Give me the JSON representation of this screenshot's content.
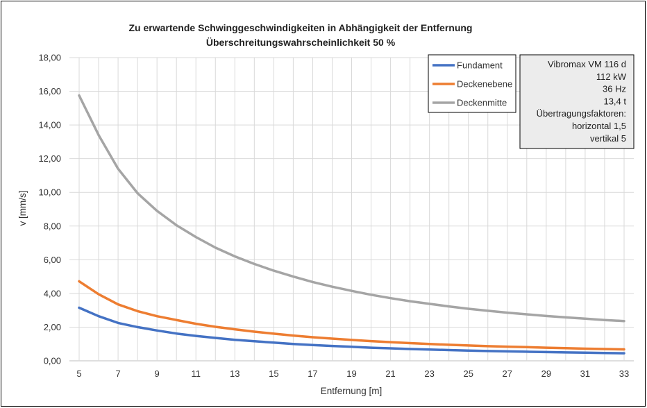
{
  "chart_data": {
    "type": "line",
    "title": "Zu erwartende Schwinggeschwindigkeiten in Abhängigkeit der Entfernung",
    "subtitle": "Überschreitungswahrscheinlichkeit 50 %",
    "xlabel": "Entfernung [m]",
    "ylabel": "v [mm/s]",
    "xlim": [
      5,
      33
    ],
    "ylim": [
      0,
      18
    ],
    "x_ticks": [
      "5",
      "7",
      "9",
      "11",
      "13",
      "15",
      "17",
      "19",
      "21",
      "23",
      "25",
      "27",
      "29",
      "31",
      "33"
    ],
    "y_ticks": [
      "0,00",
      "2,00",
      "4,00",
      "6,00",
      "8,00",
      "10,00",
      "12,00",
      "14,00",
      "16,00",
      "18,00"
    ],
    "grid": true,
    "legend_position": "top-right",
    "x": [
      5,
      6,
      7,
      8,
      9,
      10,
      11,
      12,
      13,
      14,
      15,
      16,
      17,
      18,
      19,
      20,
      21,
      22,
      23,
      24,
      25,
      26,
      27,
      28,
      29,
      30,
      31,
      32,
      33
    ],
    "series": [
      {
        "name": "Fundament",
        "color": "#4472C4",
        "values": [
          3.15,
          2.65,
          2.25,
          2.0,
          1.8,
          1.62,
          1.48,
          1.36,
          1.25,
          1.16,
          1.08,
          1.0,
          0.94,
          0.88,
          0.83,
          0.78,
          0.74,
          0.7,
          0.67,
          0.64,
          0.61,
          0.58,
          0.56,
          0.54,
          0.52,
          0.5,
          0.48,
          0.46,
          0.45
        ]
      },
      {
        "name": "Deckenebene",
        "color": "#ED7D31",
        "values": [
          4.72,
          3.95,
          3.35,
          2.95,
          2.65,
          2.42,
          2.2,
          2.02,
          1.87,
          1.73,
          1.61,
          1.5,
          1.4,
          1.32,
          1.24,
          1.17,
          1.11,
          1.05,
          1.0,
          0.95,
          0.91,
          0.87,
          0.84,
          0.81,
          0.78,
          0.75,
          0.72,
          0.7,
          0.68
        ]
      },
      {
        "name": "Deckenmitte",
        "color": "#A5A5A5",
        "values": [
          15.75,
          13.4,
          11.4,
          9.95,
          8.9,
          8.05,
          7.35,
          6.72,
          6.2,
          5.75,
          5.35,
          5.0,
          4.68,
          4.4,
          4.15,
          3.92,
          3.72,
          3.54,
          3.38,
          3.23,
          3.09,
          2.97,
          2.86,
          2.76,
          2.66,
          2.58,
          2.5,
          2.42,
          2.36
        ]
      }
    ],
    "info_box": [
      "Vibromax VM 116 d",
      "112 kW",
      "36 Hz",
      "13,4 t",
      "Übertragungsfaktoren:",
      "horizontal 1,5",
      "vertikal 5"
    ]
  }
}
